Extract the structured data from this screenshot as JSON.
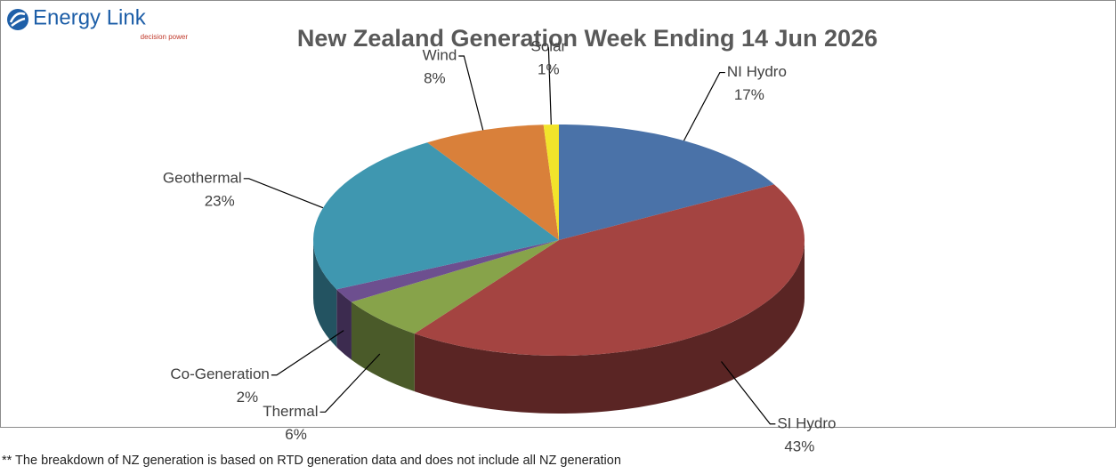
{
  "logo": {
    "name": "Energy Link",
    "tagline": "decision power"
  },
  "chart_data": {
    "type": "pie",
    "title": "New Zealand Generation Week Ending 14 Jun 2026",
    "categories": [
      "NI Hydro",
      "SI Hydro",
      "Thermal",
      "Co-Generation",
      "Geothermal",
      "Wind",
      "Solar"
    ],
    "values": [
      17,
      43,
      6,
      2,
      23,
      8,
      1
    ],
    "value_labels": [
      "17%",
      "43%",
      "6%",
      "2%",
      "23%",
      "8%",
      "1%"
    ],
    "colors": [
      "#4a72a8",
      "#a44441",
      "#87a34a",
      "#6d4f8f",
      "#3f97b0",
      "#d9803a",
      "#f2e42b"
    ]
  },
  "footnote": "** The breakdown of NZ generation is based on RTD generation data and does not include all NZ generation"
}
